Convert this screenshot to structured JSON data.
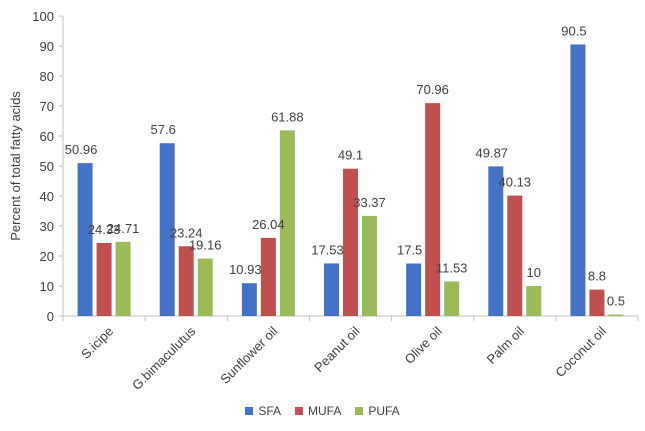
{
  "chart_data": {
    "type": "bar",
    "title": "",
    "xlabel": "",
    "ylabel": "Percent of total fatty acids",
    "ylim": [
      0,
      100
    ],
    "yticks": [
      0,
      10,
      20,
      30,
      40,
      50,
      60,
      70,
      80,
      90,
      100
    ],
    "grid": false,
    "legend_position": "bottom",
    "categories": [
      "S.icipe",
      "G.bimaculutus",
      "Sunflower oil",
      "Peanut oil",
      "Olive oil",
      "Palm oil",
      "Coconut oil"
    ],
    "series": [
      {
        "name": "SFA",
        "color": "#4472C4",
        "values": [
          50.96,
          57.6,
          10.93,
          17.53,
          17.5,
          49.87,
          90.5
        ]
      },
      {
        "name": "MUFA",
        "color": "#C0504D",
        "values": [
          24.33,
          23.24,
          26.04,
          49.1,
          70.96,
          40.13,
          8.8
        ]
      },
      {
        "name": "PUFA",
        "color": "#9BBB59",
        "values": [
          24.71,
          19.16,
          61.88,
          33.37,
          11.53,
          10,
          0.5
        ]
      }
    ],
    "data_labels": [
      [
        "50.96",
        "24.33",
        "24.71"
      ],
      [
        "57.6",
        "23.24",
        "19.16"
      ],
      [
        "10.93",
        "26.04",
        "61.88"
      ],
      [
        "17.53",
        "49.1",
        "33.37"
      ],
      [
        "17.5",
        "70.96",
        "11.53"
      ],
      [
        "49.87",
        "40.13",
        "10"
      ],
      [
        "90.5",
        "8.8",
        "0.5"
      ]
    ]
  }
}
